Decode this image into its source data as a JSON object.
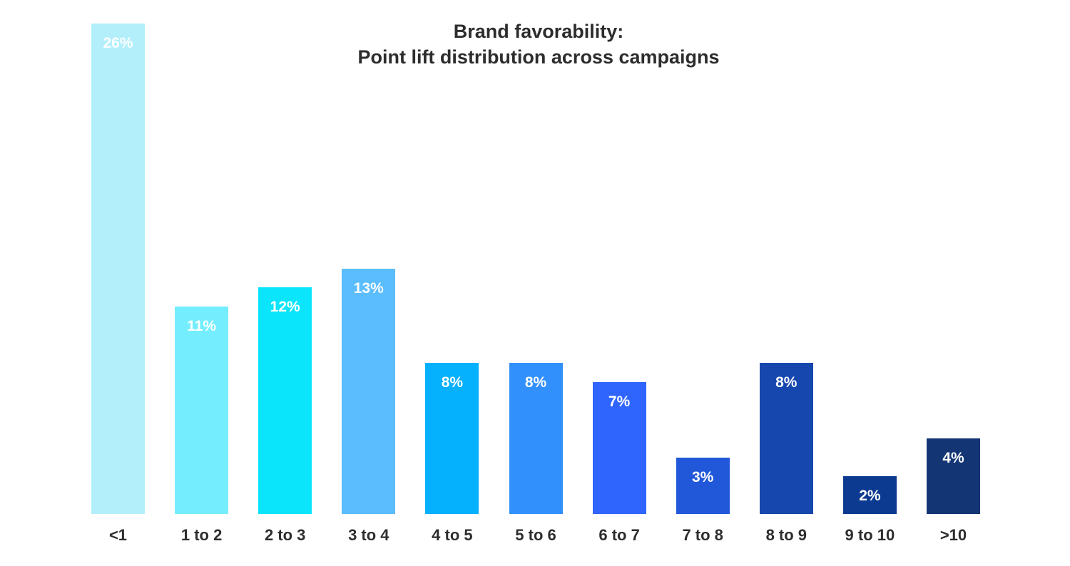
{
  "title_line1": "Brand favorability:",
  "title_line2": "Point lift distribution across campaigns",
  "chart_data": {
    "type": "bar",
    "title": "Brand favorability: Point lift distribution across campaigns",
    "xlabel": "",
    "ylabel": "",
    "categories": [
      "<1",
      "1 to 2",
      "2 to 3",
      "3 to 4",
      "4 to 5",
      "5 to 6",
      "6 to 7",
      "7 to 8",
      "8 to 9",
      "9 to 10",
      ">10"
    ],
    "values": [
      26,
      11,
      12,
      13,
      8,
      8,
      7,
      3,
      8,
      2,
      4
    ],
    "labels": [
      "26%",
      "11%",
      "12%",
      "13%",
      "8%",
      "8%",
      "7%",
      "3%",
      "8%",
      "2%",
      "4%"
    ],
    "colors": [
      "#b3effb",
      "#74eefe",
      "#0ae5fc",
      "#5bbdfd",
      "#05b0fc",
      "#3290fd",
      "#3065fd",
      "#2058d9",
      "#1647ae",
      "#0d3a91",
      "#133573"
    ],
    "ylim": [
      0,
      26
    ],
    "grid": false,
    "legend": "none"
  }
}
